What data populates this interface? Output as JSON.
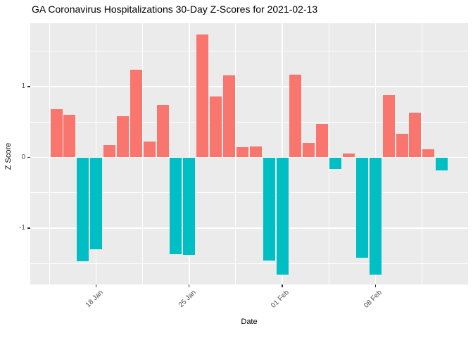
{
  "chart_data": {
    "type": "bar",
    "title": "GA Coronavirus Hospitalizations 30-Day Z-Scores for 2021-02-13",
    "xlabel": "Date",
    "ylabel": "Z Score",
    "x": [
      "2021-01-15",
      "2021-01-16",
      "2021-01-17",
      "2021-01-18",
      "2021-01-19",
      "2021-01-20",
      "2021-01-21",
      "2021-01-22",
      "2021-01-23",
      "2021-01-24",
      "2021-01-25",
      "2021-01-26",
      "2021-01-27",
      "2021-01-28",
      "2021-01-29",
      "2021-01-30",
      "2021-01-31",
      "2021-02-01",
      "2021-02-02",
      "2021-02-03",
      "2021-02-04",
      "2021-02-05",
      "2021-02-06",
      "2021-02-07",
      "2021-02-08",
      "2021-02-09",
      "2021-02-10",
      "2021-02-11",
      "2021-02-12",
      "2021-02-13"
    ],
    "values": [
      0.68,
      0.6,
      -1.47,
      -1.3,
      0.17,
      0.58,
      1.24,
      0.22,
      0.74,
      -1.37,
      -1.38,
      1.74,
      0.86,
      1.16,
      0.14,
      0.15,
      -1.46,
      -1.66,
      1.17,
      0.2,
      0.47,
      -0.16,
      0.05,
      -1.42,
      -1.66,
      0.88,
      0.33,
      0.63,
      0.11,
      -0.18
    ],
    "x_ticks": [
      {
        "label": "18 Jan",
        "index": 3
      },
      {
        "label": "25 Jan",
        "index": 10
      },
      {
        "label": "01 Feb",
        "index": 17
      },
      {
        "label": "08 Feb",
        "index": 24
      }
    ],
    "x_minor_day_offsets": [
      -0.5,
      6.5,
      13.5,
      20.5,
      27.5
    ],
    "y_ticks": [
      {
        "label": "1",
        "value": 1
      },
      {
        "label": "0",
        "value": 0
      },
      {
        "label": "-1",
        "value": -1
      }
    ],
    "y_minor_gridlines": [
      1.5,
      0.5,
      -0.5,
      -1.5
    ],
    "ylim": [
      -1.85,
      1.91
    ],
    "grid": "on",
    "legend": "none",
    "colors": {
      "positive_bar": "#F8766D",
      "negative_bar": "#00BFC4",
      "panel_background": "#EBEBEB",
      "gridline": "#FFFFFF",
      "tick_label": "#4D4D4D",
      "axis_title": "#000000",
      "title": "#000000",
      "tick_mark": "#333333"
    }
  }
}
